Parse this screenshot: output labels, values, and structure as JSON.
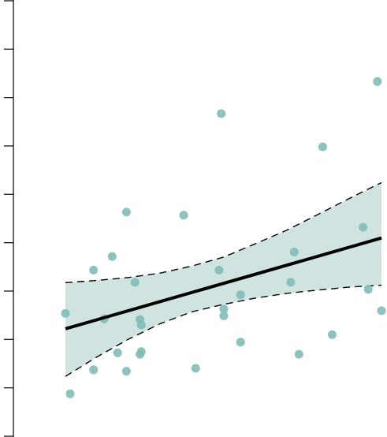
{
  "chart_data": {
    "type": "scatter",
    "title": "",
    "xlabel": "",
    "ylabel": "",
    "xlim": [
      0,
      100
    ],
    "ylim": [
      0,
      100
    ],
    "y_ticks": [
      0,
      11.1,
      22.2,
      33.3,
      44.4,
      55.6,
      66.7,
      77.8,
      88.9,
      100
    ],
    "grid": false,
    "legend": "none",
    "colors": {
      "points": "#7fbcb8",
      "band": "#cfe3e1",
      "fit_line": "#000000",
      "axis": "#000000"
    },
    "points": [
      [
        0,
        27.1
      ],
      [
        1.5,
        5.3
      ],
      [
        8.9,
        11.8
      ],
      [
        8.9,
        38.8
      ],
      [
        12.3,
        25.6
      ],
      [
        14.8,
        42.5
      ],
      [
        16.5,
        16.4
      ],
      [
        19.3,
        11.4
      ],
      [
        19.3,
        54.5
      ],
      [
        22.0,
        35.5
      ],
      [
        23.6,
        25.4
      ],
      [
        24.0,
        23.9
      ],
      [
        23.6,
        16.0
      ],
      [
        24.0,
        16.7
      ],
      [
        37.4,
        53.7
      ],
      [
        41.2,
        12.2
      ],
      [
        48.6,
        38.8
      ],
      [
        49.3,
        81.2
      ],
      [
        50.1,
        28.3
      ],
      [
        50.1,
        26.4
      ],
      [
        55.4,
        32.1
      ],
      [
        55.4,
        19.3
      ],
      [
        71.3,
        35.5
      ],
      [
        72.4,
        43.7
      ],
      [
        73.9,
        16.0
      ],
      [
        81.4,
        72.2
      ],
      [
        84.4,
        21.3
      ],
      [
        94.2,
        50.4
      ],
      [
        95.8,
        33.6
      ],
      [
        98.7,
        89.9
      ],
      [
        100,
        27.8
      ]
    ],
    "fit_line": {
      "x": [
        0,
        100
      ],
      "y": [
        22.9,
        47.5
      ]
    },
    "confidence_band": {
      "x": [
        0,
        10,
        20,
        30,
        40,
        50,
        60,
        70,
        80,
        90,
        100
      ],
      "lower": [
        10.0,
        15.3,
        20.1,
        24.3,
        27.5,
        29.5,
        31.2,
        32.5,
        33.4,
        34.2,
        34.7
      ],
      "upper": [
        35.4,
        36.0,
        36.8,
        38.0,
        39.9,
        42.3,
        45.9,
        49.6,
        53.9,
        58.3,
        62.5
      ]
    }
  }
}
